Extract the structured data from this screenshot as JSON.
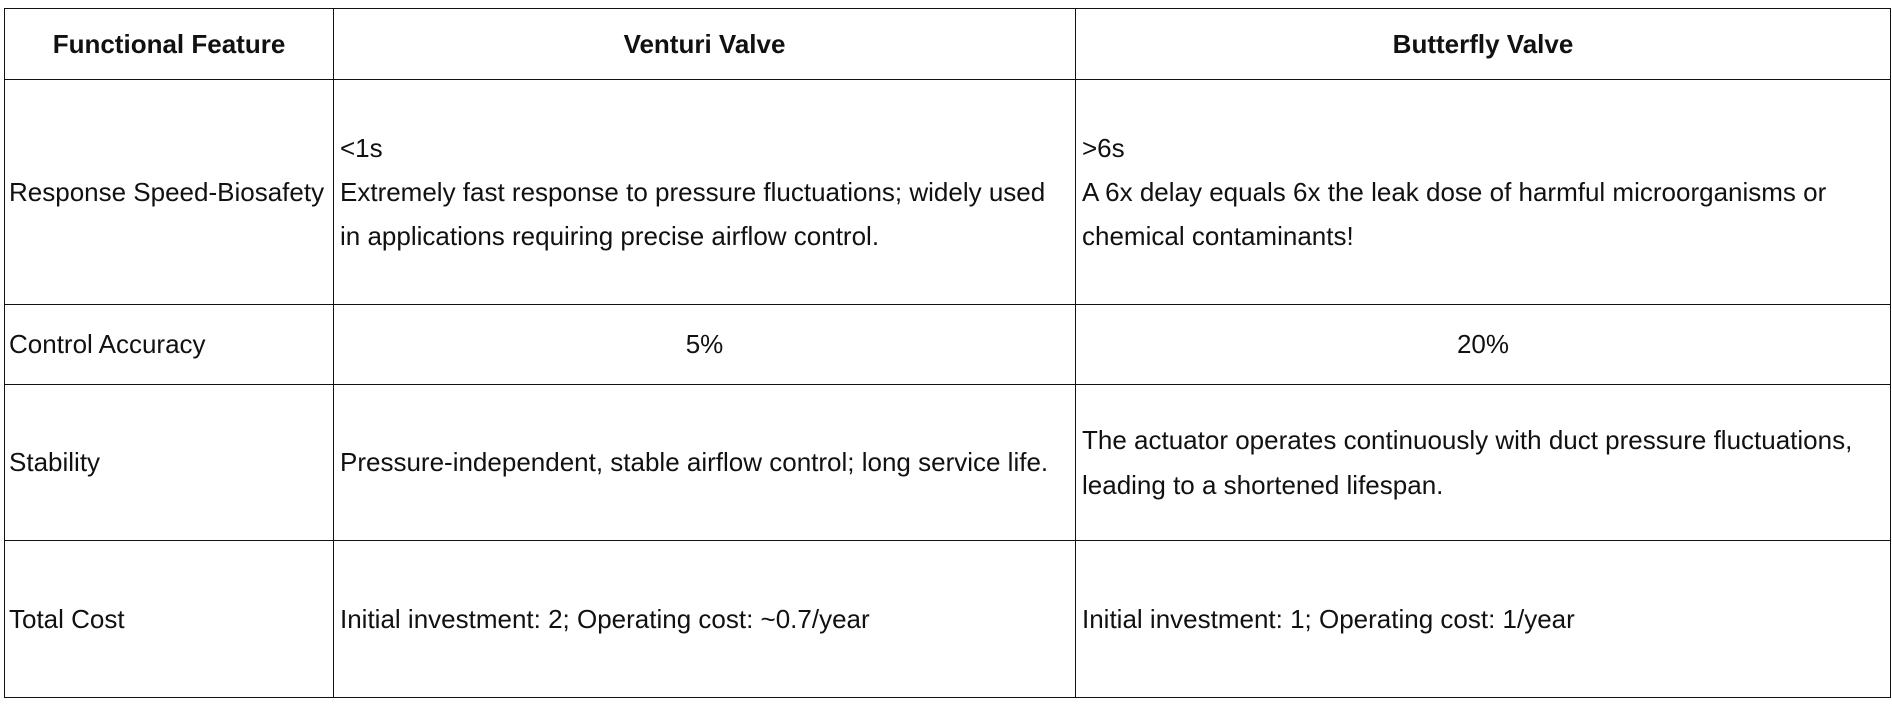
{
  "table": {
    "header": [
      "Functional Feature",
      "Venturi Valve",
      "Butterfly Valve"
    ],
    "rows": [
      [
        [
          "Response Speed-Biosafety"
        ],
        [
          "<1s",
          "Extremely fast response to pressure fluctuations; widely used in applications requiring precise airflow control."
        ],
        [
          ">6s",
          "A 6x delay equals 6x the leak dose of harmful microorganisms or chemical contaminants!"
        ]
      ],
      [
        [
          "Control Accuracy"
        ],
        [
          "5%"
        ],
        [
          "20%"
        ]
      ],
      [
        [
          "Stability"
        ],
        [
          "Pressure-independent, stable airflow control; long service life."
        ],
        [
          "The actuator operates continuously with duct pressure fluctuations, leading to a shortened lifespan."
        ]
      ],
      [
        [
          "Total Cost"
        ],
        [
          "Initial investment: 2; Operating cost: ~0.7/year"
        ],
        [
          "Initial investment: 1; Operating cost: 1/year"
        ]
      ]
    ]
  }
}
